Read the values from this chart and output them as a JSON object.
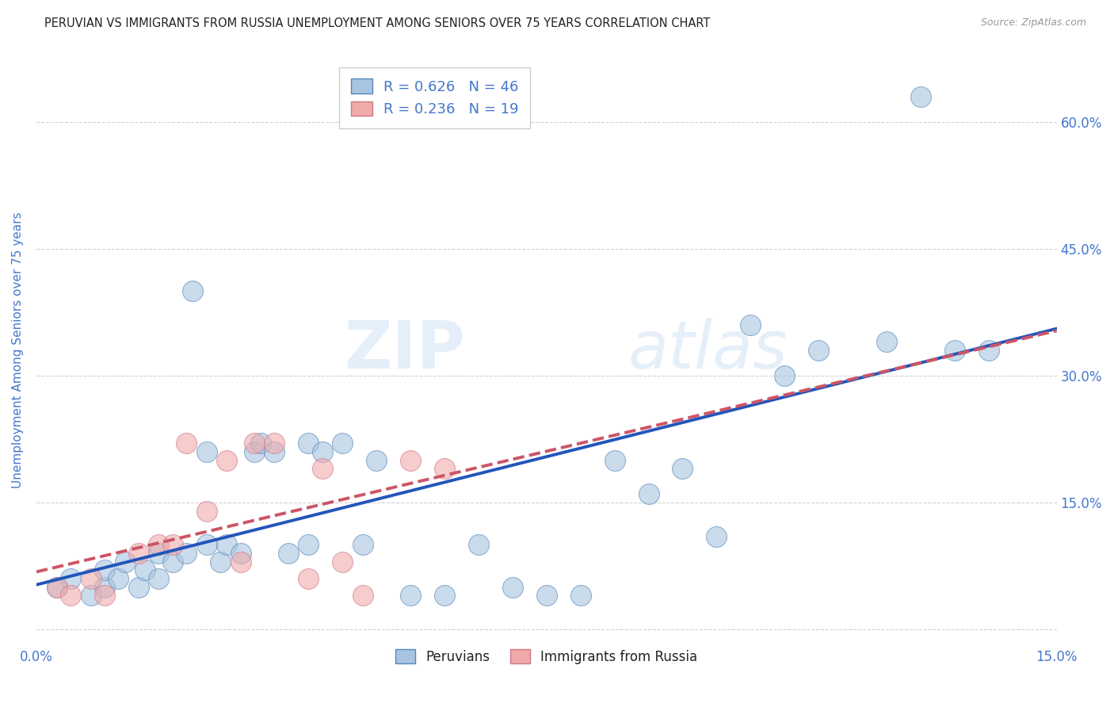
{
  "title": "PERUVIAN VS IMMIGRANTS FROM RUSSIA UNEMPLOYMENT AMONG SENIORS OVER 75 YEARS CORRELATION CHART",
  "source": "Source: ZipAtlas.com",
  "ylabel": "Unemployment Among Seniors over 75 years",
  "watermark_zip": "ZIP",
  "watermark_atlas": "atlas",
  "xlim": [
    0,
    0.15
  ],
  "ylim": [
    -0.02,
    0.68
  ],
  "yticks": [
    0.0,
    0.15,
    0.3,
    0.45,
    0.6
  ],
  "ytick_labels_right": [
    "",
    "15.0%",
    "30.0%",
    "45.0%",
    "60.0%"
  ],
  "xticks": [
    0.0,
    0.03,
    0.06,
    0.09,
    0.12,
    0.15
  ],
  "xtick_labels": [
    "0.0%",
    "",
    "",
    "",
    "",
    "15.0%"
  ],
  "blue_R": 0.626,
  "blue_N": 46,
  "pink_R": 0.236,
  "pink_N": 19,
  "blue_fill": "#A8C4E0",
  "blue_edge": "#5588BB",
  "pink_fill": "#F0AAAA",
  "pink_edge": "#CC7788",
  "trend_blue_color": "#2255BB",
  "trend_pink_color": "#CC5566",
  "legend_label_blue": "Peruvians",
  "legend_label_pink": "Immigrants from Russia",
  "title_color": "#222222",
  "axis_color": "#4477CC",
  "source_color": "#999999",
  "grid_color": "#CCCCCC",
  "background": "#FFFFFF",
  "blue_x": [
    0.003,
    0.005,
    0.008,
    0.01,
    0.01,
    0.012,
    0.013,
    0.015,
    0.016,
    0.018,
    0.018,
    0.02,
    0.022,
    0.023,
    0.025,
    0.025,
    0.027,
    0.028,
    0.03,
    0.032,
    0.033,
    0.035,
    0.037,
    0.04,
    0.04,
    0.042,
    0.045,
    0.048,
    0.05,
    0.055,
    0.06,
    0.065,
    0.07,
    0.075,
    0.08,
    0.085,
    0.09,
    0.095,
    0.1,
    0.105,
    0.11,
    0.115,
    0.125,
    0.13,
    0.135,
    0.14
  ],
  "blue_y": [
    0.05,
    0.06,
    0.04,
    0.05,
    0.07,
    0.06,
    0.08,
    0.05,
    0.07,
    0.06,
    0.09,
    0.08,
    0.09,
    0.4,
    0.1,
    0.21,
    0.08,
    0.1,
    0.09,
    0.21,
    0.22,
    0.21,
    0.09,
    0.1,
    0.22,
    0.21,
    0.22,
    0.1,
    0.2,
    0.04,
    0.04,
    0.1,
    0.05,
    0.04,
    0.04,
    0.2,
    0.16,
    0.19,
    0.11,
    0.36,
    0.3,
    0.33,
    0.34,
    0.63,
    0.33,
    0.33
  ],
  "pink_x": [
    0.003,
    0.005,
    0.008,
    0.01,
    0.015,
    0.018,
    0.02,
    0.022,
    0.025,
    0.028,
    0.03,
    0.032,
    0.035,
    0.04,
    0.042,
    0.045,
    0.048,
    0.055,
    0.06
  ],
  "pink_y": [
    0.05,
    0.04,
    0.06,
    0.04,
    0.09,
    0.1,
    0.1,
    0.22,
    0.14,
    0.2,
    0.08,
    0.22,
    0.22,
    0.06,
    0.19,
    0.08,
    0.04,
    0.2,
    0.19
  ]
}
